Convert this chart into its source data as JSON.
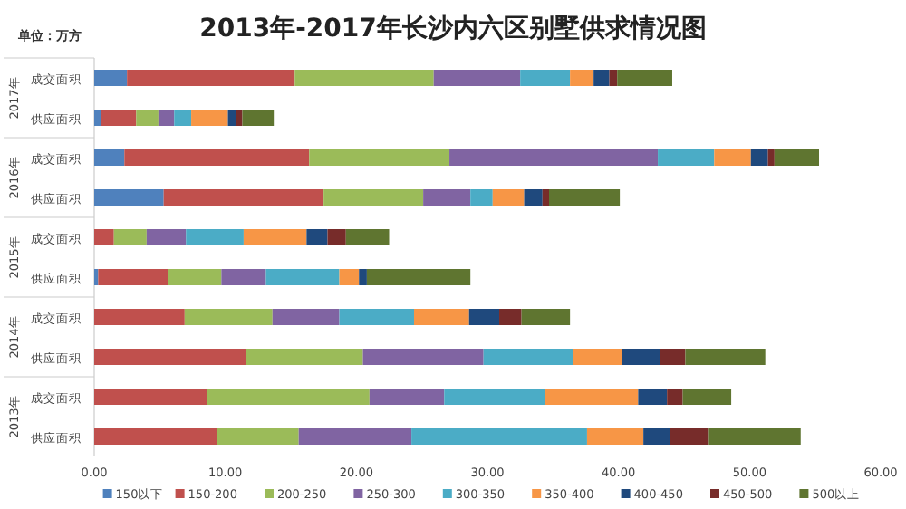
{
  "chart_data": {
    "type": "bar",
    "orientation": "horizontal",
    "stacked": true,
    "title": "2013年-2017年长沙内六区别墅供求情况图",
    "ylabel": "单位：万方",
    "categories": [
      "成交面积",
      "供应面积",
      "成交面积",
      "供应面积",
      "成交面积",
      "供应面积",
      "成交面积",
      "供应面积",
      "成交面积",
      "供应面积"
    ],
    "annotations": [
      "2017年",
      "2016年",
      "2015年",
      "2014年",
      "2013年"
    ],
    "xlim": [
      0,
      60
    ],
    "xticks": [
      {
        "value": 0,
        "label": "0.00"
      },
      {
        "value": 10,
        "label": "10.00"
      },
      {
        "value": 20,
        "label": "20.00"
      },
      {
        "value": 30,
        "label": "30.00"
      },
      {
        "value": 40,
        "label": "40.00"
      },
      {
        "value": 50,
        "label": "50.00"
      },
      {
        "value": 60,
        "label": "60.00"
      }
    ],
    "grid": false,
    "legend": "bottom",
    "series": [
      {
        "name": "150以下",
        "color": "#4f81bd",
        "values": [
          2.5,
          0.5,
          2.3,
          5.3,
          0,
          0.3,
          0,
          0,
          0,
          0
        ]
      },
      {
        "name": "150-200",
        "color": "#c0504d",
        "values": [
          12.8,
          2.7,
          14.1,
          12.2,
          1.5,
          5.3,
          6.9,
          11.6,
          8.6,
          9.4
        ]
      },
      {
        "name": "200-250",
        "color": "#9bbb59",
        "values": [
          10.6,
          1.7,
          10.7,
          7.6,
          2.5,
          4.1,
          6.7,
          8.9,
          12.4,
          6.2
        ]
      },
      {
        "name": "250-300",
        "color": "#8064a2",
        "values": [
          6.6,
          1.2,
          15.9,
          3.6,
          3.0,
          3.4,
          5.1,
          9.2,
          5.7,
          8.6
        ]
      },
      {
        "name": "300-350",
        "color": "#4bacc6",
        "values": [
          3.8,
          1.3,
          4.3,
          1.7,
          4.4,
          5.6,
          5.7,
          6.8,
          7.7,
          13.4
        ]
      },
      {
        "name": "350-400",
        "color": "#f79646",
        "values": [
          1.8,
          2.8,
          2.8,
          2.4,
          4.8,
          1.5,
          4.2,
          3.8,
          7.1,
          4.3
        ]
      },
      {
        "name": "400-450",
        "color": "#1f497d",
        "values": [
          1.2,
          0.6,
          1.3,
          1.4,
          1.6,
          0.6,
          2.3,
          2.9,
          2.2,
          2.0
        ]
      },
      {
        "name": "450-500",
        "color": "#772c2a",
        "values": [
          0.6,
          0.5,
          0.5,
          0.5,
          1.4,
          0,
          1.7,
          1.9,
          1.2,
          3.0
        ]
      },
      {
        "name": "500以上",
        "color": "#5f7530",
        "values": [
          4.2,
          2.4,
          3.4,
          5.4,
          3.3,
          7.9,
          3.7,
          6.1,
          3.7,
          7.0
        ]
      }
    ]
  }
}
